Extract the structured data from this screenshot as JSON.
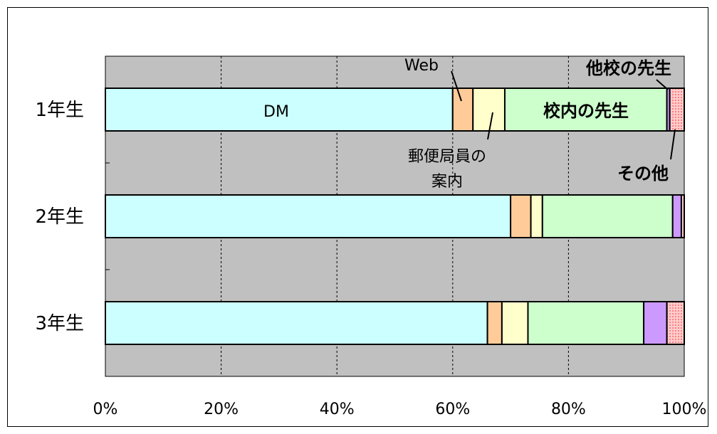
{
  "chart_data": {
    "type": "bar",
    "orientation": "horizontal",
    "stacked": "percent",
    "categories": [
      "1年生",
      "2年生",
      "3年生"
    ],
    "series": [
      {
        "name": "DM",
        "values": [
          60,
          70,
          66
        ],
        "color": "#ccffff"
      },
      {
        "name": "Web",
        "values": [
          3.5,
          3.5,
          2.5
        ],
        "color": "#ffcc99"
      },
      {
        "name": "郵便局員の案内",
        "values": [
          5.5,
          2,
          4.5
        ],
        "color": "#ffffcc"
      },
      {
        "name": "校内の先生",
        "values": [
          28,
          22.5,
          20
        ],
        "color": "#ccffcc"
      },
      {
        "name": "他校の先生",
        "values": [
          0.5,
          1.5,
          4
        ],
        "color": "#cc99ff"
      },
      {
        "name": "その他",
        "values": [
          2.5,
          0.5,
          3
        ],
        "color": "#ff9999"
      }
    ],
    "xlim": [
      0,
      100
    ],
    "xticks": [
      "0%",
      "20%",
      "40%",
      "60%",
      "80%",
      "100%"
    ],
    "grid": true,
    "annotations": {
      "dm": "DM",
      "web": "Web",
      "post_line1": "郵便局員の",
      "post_line2": "案内",
      "teacher": "校内の先生",
      "other_teacher": "他校の先生",
      "other": "その他"
    },
    "colors": {
      "plot_bg": "#c0c0c0",
      "grid": "#000000",
      "other_pattern": "#ffcccc"
    }
  }
}
